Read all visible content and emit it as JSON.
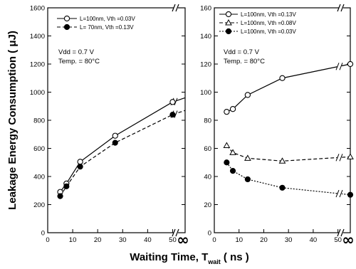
{
  "chart_data": [
    {
      "type": "line",
      "panel": "left",
      "xlim": [
        0,
        55
      ],
      "ylim": [
        0,
        1600
      ],
      "xticks": [
        "0",
        "10",
        "20",
        "30",
        "40",
        "50"
      ],
      "yticks": [
        "0",
        "200",
        "400",
        "600",
        "800",
        "1000",
        "1200",
        "1400",
        "1600"
      ],
      "x_extra_tick": "∞",
      "annotations": [
        "Vdd = 0.7 V",
        "Temp. = 80°C"
      ],
      "series": [
        {
          "name": "L=100nm, Vth =0.03V",
          "marker": "open-circle",
          "style": "solid",
          "x": [
            5,
            7.5,
            13,
            27,
            50,
            55
          ],
          "y": [
            290,
            350,
            505,
            690,
            930,
            960
          ]
        },
        {
          "name": "L= 70nm, Vth =0.13V",
          "marker": "filled-circle",
          "style": "dashed",
          "x": [
            5,
            7.5,
            13,
            27,
            50,
            55
          ],
          "y": [
            260,
            330,
            470,
            640,
            840,
            870
          ]
        }
      ]
    },
    {
      "type": "line",
      "panel": "right",
      "xlim": [
        0,
        55
      ],
      "ylim": [
        0,
        160
      ],
      "xticks": [
        "0",
        "10",
        "20",
        "30",
        "40",
        "50"
      ],
      "yticks": [
        "0",
        "20",
        "40",
        "60",
        "80",
        "100",
        "120",
        "140",
        "160"
      ],
      "x_extra_tick": "∞",
      "annotations": [
        "Vdd = 0.7 V",
        "Temp. = 80°C"
      ],
      "series": [
        {
          "name": "L=100nm, Vth =0.13V",
          "marker": "open-circle",
          "style": "solid",
          "x": [
            5,
            7.5,
            13.5,
            27.5,
            55
          ],
          "y": [
            86,
            88,
            98,
            110,
            120
          ]
        },
        {
          "name": "L=100nm, Vth =0.08V",
          "marker": "open-triangle",
          "style": "dashed",
          "x": [
            5,
            7.5,
            13.5,
            27.5,
            55
          ],
          "y": [
            62,
            57,
            53,
            51,
            54
          ]
        },
        {
          "name": "L=100nm, Vth =0.03V",
          "marker": "filled-circle",
          "style": "dotted",
          "x": [
            5,
            7.5,
            13.5,
            27.5,
            55
          ],
          "y": [
            50,
            44,
            38,
            32,
            27
          ]
        }
      ]
    }
  ],
  "ylabel": "Leakage Energy Consumption (  μJ)",
  "xlabel_main": "Waiting Time, T",
  "xlabel_sub": "wait",
  "xlabel_unit": " ( ns )"
}
